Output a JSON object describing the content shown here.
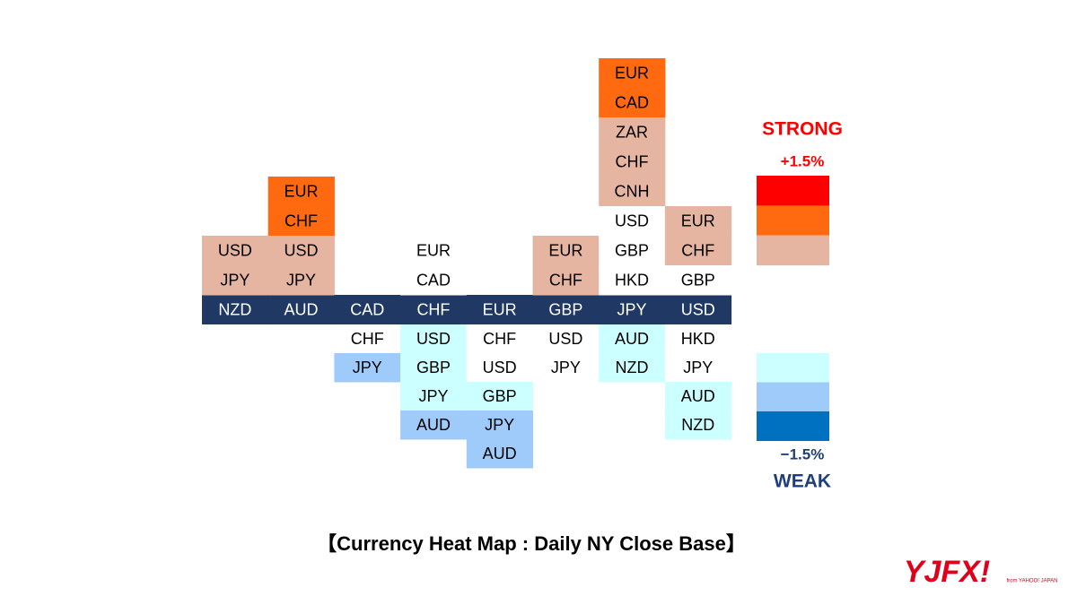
{
  "columns": [
    {
      "base": "NZD",
      "above": [
        {
          "label": "USD",
          "color": "#e6b5a1"
        },
        {
          "label": "JPY",
          "color": "#e6b5a1"
        }
      ],
      "below": []
    },
    {
      "base": "AUD",
      "above": [
        {
          "label": "EUR",
          "color": "#ff6a10"
        },
        {
          "label": "CHF",
          "color": "#ff6a10"
        },
        {
          "label": "USD",
          "color": "#e6b5a1"
        },
        {
          "label": "JPY",
          "color": "#e6b5a1"
        }
      ],
      "below": []
    },
    {
      "base": "CAD",
      "above": [],
      "below": [
        {
          "label": "CHF",
          "color": "#ffffff"
        },
        {
          "label": "JPY",
          "color": "#9fcbfb"
        }
      ]
    },
    {
      "base": "CHF",
      "above": [
        {
          "label": "EUR",
          "color": "#ffffff"
        },
        {
          "label": "CAD",
          "color": "#ffffff"
        }
      ],
      "below": [
        {
          "label": "USD",
          "color": "#ccffff"
        },
        {
          "label": "GBP",
          "color": "#ccffff"
        },
        {
          "label": "JPY",
          "color": "#ccffff"
        },
        {
          "label": "AUD",
          "color": "#9fcbfb"
        }
      ]
    },
    {
      "base": "EUR",
      "above": [],
      "below": [
        {
          "label": "CHF",
          "color": "#ffffff"
        },
        {
          "label": "USD",
          "color": "#ffffff"
        },
        {
          "label": "GBP",
          "color": "#ccffff"
        },
        {
          "label": "JPY",
          "color": "#9fcbfb"
        },
        {
          "label": "AUD",
          "color": "#9fcbfb"
        }
      ]
    },
    {
      "base": "GBP",
      "above": [
        {
          "label": "EUR",
          "color": "#e6b5a1"
        },
        {
          "label": "CHF",
          "color": "#e6b5a1"
        }
      ],
      "below": [
        {
          "label": "USD",
          "color": "#ffffff"
        },
        {
          "label": "JPY",
          "color": "#ffffff"
        }
      ]
    },
    {
      "base": "JPY",
      "above": [
        {
          "label": "EUR",
          "color": "#ff6a10"
        },
        {
          "label": "CAD",
          "color": "#ff6a10"
        },
        {
          "label": "ZAR",
          "color": "#e6b5a1"
        },
        {
          "label": "CHF",
          "color": "#e6b5a1"
        },
        {
          "label": "CNH",
          "color": "#e6b5a1"
        },
        {
          "label": "USD",
          "color": "#ffffff"
        },
        {
          "label": "GBP",
          "color": "#ffffff"
        },
        {
          "label": "HKD",
          "color": "#ffffff"
        }
      ],
      "below": [
        {
          "label": "AUD",
          "color": "#ccffff"
        },
        {
          "label": "NZD",
          "color": "#ccffff"
        }
      ]
    },
    {
      "base": "USD",
      "above": [
        {
          "label": "EUR",
          "color": "#e6b5a1"
        },
        {
          "label": "CHF",
          "color": "#e6b5a1"
        },
        {
          "label": "GBP",
          "color": "#ffffff"
        }
      ],
      "below": [
        {
          "label": "HKD",
          "color": "#ffffff"
        },
        {
          "label": "JPY",
          "color": "#ffffff"
        },
        {
          "label": "AUD",
          "color": "#ccffff"
        },
        {
          "label": "NZD",
          "color": "#ccffff"
        }
      ]
    }
  ],
  "legend": {
    "strong_label": "STRONG",
    "strong_value": "+1.5%",
    "strong_colors": [
      "#ff0000",
      "#ff6a10",
      "#e6b5a1"
    ],
    "weak_colors": [
      "#ccffff",
      "#9fcbfb",
      "#0070c0"
    ],
    "weak_value": "−1.5%",
    "weak_label": "WEAK"
  },
  "caption": "【Currency Heat Map : Daily NY Close Base】",
  "logo": {
    "brand": "YJFX!",
    "from": "from YAHOO! JAPAN"
  }
}
